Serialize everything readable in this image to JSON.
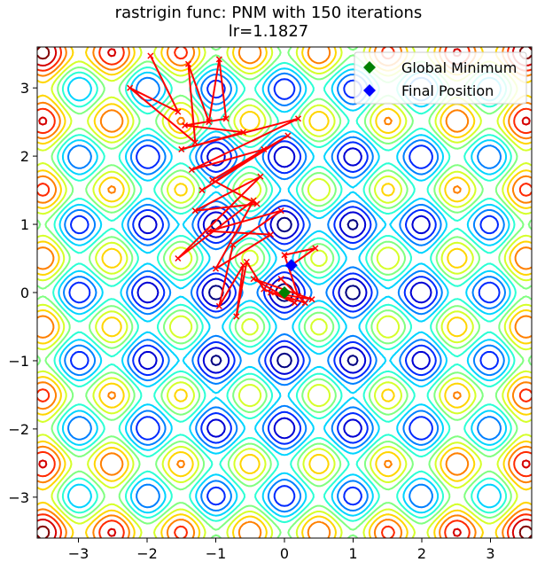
{
  "title_line1": "rastrigin func: PNM with 150 iterations",
  "title_line2": "lr=1.1827",
  "chart_data": {
    "type": "contour",
    "function": "rastrigin",
    "title": "rastrigin func: PNM with 150 iterations\nlr=1.1827",
    "xlim": [
      -3.6,
      3.6
    ],
    "ylim": [
      -3.6,
      3.6
    ],
    "xticks": [
      -3,
      -2,
      -1,
      0,
      1,
      2,
      3
    ],
    "yticks": [
      -3,
      -2,
      -1,
      0,
      1,
      2,
      3
    ],
    "xtick_labels": [
      "−3",
      "−2",
      "−1",
      "0",
      "1",
      "2",
      "3"
    ],
    "ytick_labels": [
      "−3",
      "−2",
      "−1",
      "0",
      "1",
      "2",
      "3"
    ],
    "colormap": "jet",
    "grid": false,
    "legend_position": "upper-right",
    "legend": [
      {
        "label": "Global Minimum",
        "color": "#008000",
        "marker": "diamond"
      },
      {
        "label": "Final Position",
        "color": "#0000ff",
        "marker": "diamond"
      }
    ],
    "global_minimum": {
      "x": 0.0,
      "y": 0.0
    },
    "final_position": {
      "x": 0.1,
      "y": 0.4
    },
    "path_color": "#ff0000",
    "path": [
      [
        -1.95,
        3.47
      ],
      [
        -1.55,
        2.65
      ],
      [
        -2.25,
        3.0
      ],
      [
        -1.3,
        2.2
      ],
      [
        -1.4,
        3.35
      ],
      [
        -1.1,
        2.5
      ],
      [
        -0.95,
        3.42
      ],
      [
        -0.85,
        2.55
      ],
      [
        -1.45,
        2.45
      ],
      [
        -0.6,
        2.35
      ],
      [
        -1.5,
        2.1
      ],
      [
        0.2,
        2.55
      ],
      [
        -1.35,
        1.8
      ],
      [
        -0.3,
        2.1
      ],
      [
        -1.2,
        1.5
      ],
      [
        0.05,
        2.3
      ],
      [
        -1.05,
        1.65
      ],
      [
        -0.4,
        1.3
      ],
      [
        -1.3,
        1.2
      ],
      [
        -0.35,
        1.7
      ],
      [
        -1.55,
        0.5
      ],
      [
        -0.45,
        1.35
      ],
      [
        -1.0,
        0.35
      ],
      [
        -0.2,
        0.85
      ],
      [
        -1.1,
        0.9
      ],
      [
        -0.05,
        1.2
      ],
      [
        -0.75,
        0.7
      ],
      [
        -0.95,
        -0.2
      ],
      [
        -0.6,
        0.4
      ],
      [
        -0.7,
        -0.35
      ],
      [
        -0.55,
        0.45
      ],
      [
        -0.3,
        0.05
      ],
      [
        0.15,
        -0.15
      ],
      [
        -0.45,
        0.2
      ],
      [
        0.4,
        -0.1
      ],
      [
        -0.2,
        0.0
      ],
      [
        0.3,
        -0.15
      ],
      [
        -0.05,
        0.2
      ],
      [
        0.2,
        -0.05
      ],
      [
        0.0,
        0.55
      ],
      [
        0.45,
        0.65
      ],
      [
        0.1,
        0.4
      ]
    ]
  }
}
